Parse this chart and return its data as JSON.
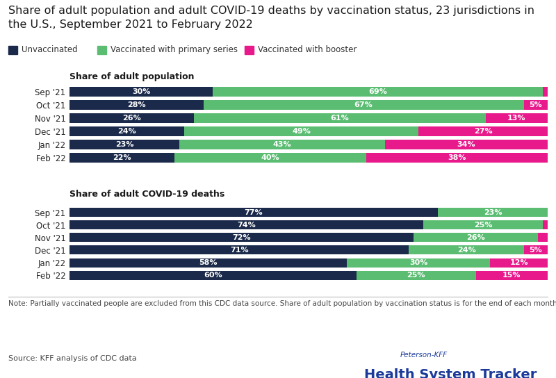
{
  "title_line1": "Share of adult population and adult COVID-19 deaths by vaccination status, 23 jurisdictions in",
  "title_line2": "the U.S., September 2021 to February 2022",
  "title_fontsize": 11.5,
  "legend_labels": [
    "Unvaccinated",
    "Vaccinated with primary series",
    "Vaccinated with booster"
  ],
  "colors": {
    "unvaccinated": "#1B2A4A",
    "primary": "#5BBD72",
    "booster": "#E8198B"
  },
  "months": [
    "Sep '21",
    "Oct '21",
    "Nov '21",
    "Dec '21",
    "Jan '22",
    "Feb '22"
  ],
  "population": {
    "unvaccinated": [
      30,
      28,
      26,
      24,
      23,
      22
    ],
    "primary": [
      69,
      67,
      61,
      49,
      43,
      40
    ],
    "booster": [
      1,
      5,
      13,
      27,
      34,
      38
    ]
  },
  "deaths": {
    "unvaccinated": [
      77,
      74,
      72,
      71,
      58,
      60
    ],
    "primary": [
      23,
      25,
      26,
      24,
      30,
      25
    ],
    "booster": [
      0,
      1,
      2,
      5,
      12,
      15
    ]
  },
  "pop_labels": {
    "unvaccinated": [
      "30%",
      "28%",
      "26%",
      "24%",
      "23%",
      "22%"
    ],
    "primary": [
      "69%",
      "67%",
      "61%",
      "49%",
      "43%",
      "40%"
    ],
    "booster": [
      "",
      "5%",
      "13%",
      "27%",
      "34%",
      "38%"
    ]
  },
  "death_labels": {
    "unvaccinated": [
      "77%",
      "74%",
      "72%",
      "71%",
      "58%",
      "60%"
    ],
    "primary": [
      "23%",
      "25%",
      "26%",
      "24%",
      "30%",
      "25%"
    ],
    "booster": [
      "",
      "",
      "",
      "5%",
      "12%",
      "15%"
    ]
  },
  "section1_title": "Share of adult population",
  "section2_title": "Share of adult COVID-19 deaths",
  "note": "Note: Partially vaccinated people are excluded from this CDC data source. Share of adult population by vaccination status is for the end of each month.",
  "source": "Source: KFF analysis of CDC data",
  "tracker_label1": "Peterson-KFF",
  "tracker_label2": "Health System Tracker",
  "background_color": "#FFFFFF",
  "bar_height": 0.72
}
